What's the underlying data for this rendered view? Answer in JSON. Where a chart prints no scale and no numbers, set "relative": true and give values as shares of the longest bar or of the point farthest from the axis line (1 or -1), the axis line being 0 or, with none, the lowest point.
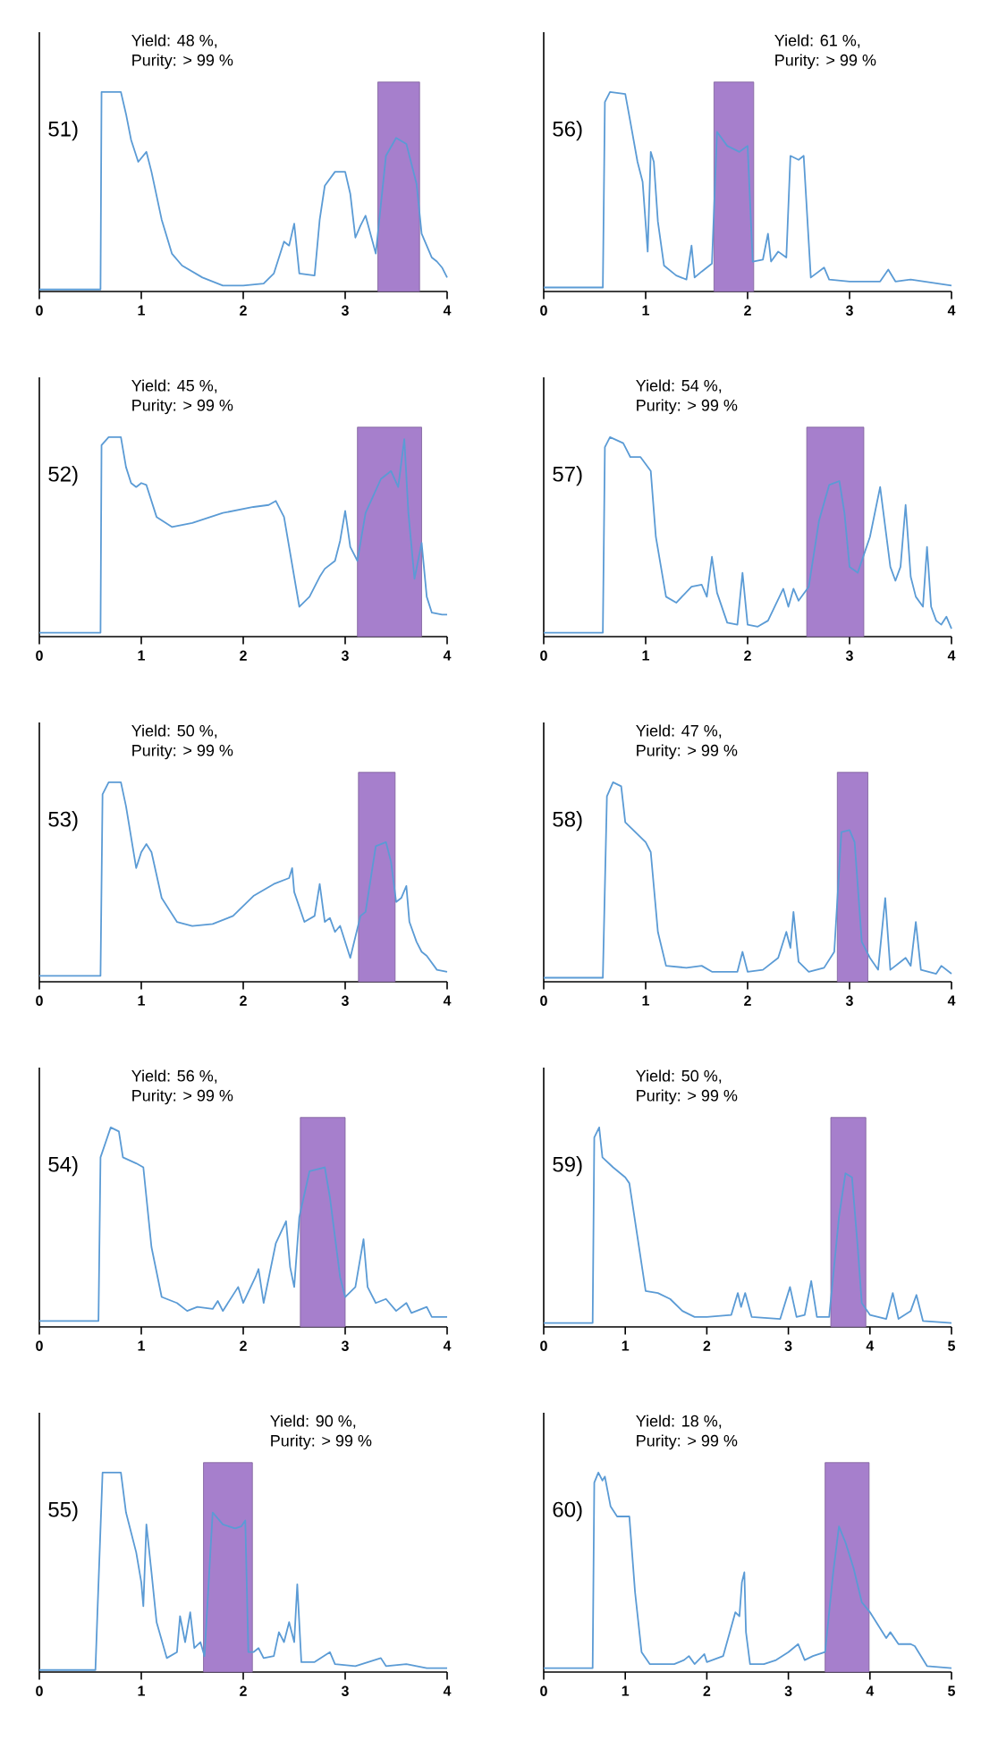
{
  "chart_data": [
    {
      "type": "line",
      "title": "51)",
      "annotations": [
        "Yield: 48 %,",
        "Purity: > 99 %"
      ],
      "relative": true,
      "tick_labels": "x",
      "xlim": [
        0,
        4
      ],
      "xticks": [
        0,
        1,
        2,
        3,
        4
      ],
      "bands": [
        {
          "axis": "x",
          "from": 3.32,
          "to": 3.73,
          "color": "#a67fcc"
        }
      ],
      "series": [
        {
          "color": "#5b9bd5",
          "x": [
            0,
            0.6,
            0.61,
            0.8,
            0.85,
            0.9,
            0.97,
            1.05,
            1.1,
            1.2,
            1.3,
            1.4,
            1.6,
            1.8,
            2.0,
            2.2,
            2.3,
            2.4,
            2.45,
            2.5,
            2.55,
            2.7,
            2.75,
            2.8,
            2.9,
            3.0,
            3.05,
            3.1,
            3.15,
            3.2,
            3.3,
            3.4,
            3.5,
            3.6,
            3.7,
            3.75,
            3.85,
            3.9,
            3.95,
            4.0
          ],
          "values": [
            0.01,
            0.01,
            1.0,
            1.0,
            0.89,
            0.76,
            0.65,
            0.7,
            0.6,
            0.36,
            0.19,
            0.13,
            0.07,
            0.03,
            0.03,
            0.04,
            0.09,
            0.25,
            0.23,
            0.34,
            0.09,
            0.08,
            0.36,
            0.53,
            0.6,
            0.6,
            0.49,
            0.27,
            0.33,
            0.38,
            0.19,
            0.68,
            0.77,
            0.74,
            0.54,
            0.29,
            0.17,
            0.15,
            0.12,
            0.07
          ]
        }
      ]
    },
    {
      "type": "line",
      "title": "56)",
      "annotations": [
        "Yield: 61 %,",
        "Purity: > 99 %"
      ],
      "relative": true,
      "tick_labels": "x",
      "xlim": [
        0,
        4
      ],
      "xticks": [
        0,
        1,
        2,
        3,
        4
      ],
      "bands": [
        {
          "axis": "x",
          "from": 1.67,
          "to": 2.06,
          "color": "#a67fcc"
        }
      ],
      "series": [
        {
          "color": "#5b9bd5",
          "x": [
            0,
            0.58,
            0.6,
            0.65,
            0.8,
            0.85,
            0.92,
            0.97,
            1.02,
            1.05,
            1.08,
            1.12,
            1.18,
            1.3,
            1.4,
            1.45,
            1.48,
            1.55,
            1.65,
            1.7,
            1.8,
            1.92,
            2.0,
            2.05,
            2.15,
            2.2,
            2.23,
            2.3,
            2.38,
            2.42,
            2.5,
            2.55,
            2.62,
            2.75,
            2.8,
            3.0,
            3.3,
            3.38,
            3.45,
            3.6,
            4.0
          ],
          "values": [
            0.02,
            0.02,
            0.95,
            1.0,
            0.99,
            0.85,
            0.65,
            0.55,
            0.2,
            0.7,
            0.65,
            0.35,
            0.13,
            0.08,
            0.06,
            0.23,
            0.07,
            0.1,
            0.14,
            0.8,
            0.73,
            0.7,
            0.73,
            0.15,
            0.16,
            0.29,
            0.15,
            0.2,
            0.17,
            0.68,
            0.66,
            0.68,
            0.07,
            0.12,
            0.06,
            0.05,
            0.05,
            0.11,
            0.05,
            0.06,
            0.03
          ]
        }
      ]
    },
    {
      "type": "line",
      "title": "52)",
      "annotations": [
        "Yield: 45 %,",
        "Purity: > 99 %"
      ],
      "relative": true,
      "tick_labels": "x",
      "xlim": [
        0,
        4
      ],
      "xticks": [
        0,
        1,
        2,
        3,
        4
      ],
      "bands": [
        {
          "axis": "x",
          "from": 3.12,
          "to": 3.75,
          "color": "#a67fcc"
        }
      ],
      "series": [
        {
          "color": "#5b9bd5",
          "x": [
            0,
            0.6,
            0.61,
            0.68,
            0.8,
            0.85,
            0.9,
            0.95,
            1.0,
            1.05,
            1.15,
            1.3,
            1.5,
            1.8,
            2.1,
            2.25,
            2.32,
            2.4,
            2.45,
            2.55,
            2.65,
            2.75,
            2.8,
            2.9,
            2.95,
            3.0,
            3.05,
            3.12,
            3.2,
            3.35,
            3.45,
            3.52,
            3.58,
            3.62,
            3.68,
            3.75,
            3.8,
            3.85,
            3.95,
            4.0
          ],
          "values": [
            0.02,
            0.02,
            0.96,
            1.0,
            1.0,
            0.85,
            0.77,
            0.75,
            0.77,
            0.76,
            0.6,
            0.55,
            0.57,
            0.62,
            0.65,
            0.66,
            0.68,
            0.6,
            0.45,
            0.15,
            0.2,
            0.3,
            0.34,
            0.38,
            0.48,
            0.63,
            0.45,
            0.38,
            0.62,
            0.79,
            0.83,
            0.75,
            0.99,
            0.62,
            0.29,
            0.47,
            0.2,
            0.12,
            0.11,
            0.11
          ]
        }
      ]
    },
    {
      "type": "line",
      "title": "57)",
      "annotations": [
        "Yield: 54 %,",
        "Purity: > 99 %"
      ],
      "relative": true,
      "tick_labels": "x",
      "xlim": [
        0,
        4
      ],
      "xticks": [
        0,
        1,
        2,
        3,
        4
      ],
      "bands": [
        {
          "axis": "x",
          "from": 2.58,
          "to": 3.14,
          "color": "#a67fcc"
        }
      ],
      "series": [
        {
          "color": "#5b9bd5",
          "x": [
            0,
            0.58,
            0.6,
            0.65,
            0.78,
            0.85,
            0.95,
            1.05,
            1.1,
            1.2,
            1.3,
            1.45,
            1.55,
            1.6,
            1.65,
            1.7,
            1.8,
            1.9,
            1.95,
            2.0,
            2.1,
            2.2,
            2.35,
            2.4,
            2.45,
            2.5,
            2.6,
            2.7,
            2.8,
            2.9,
            2.95,
            3.0,
            3.08,
            3.2,
            3.3,
            3.4,
            3.45,
            3.5,
            3.55,
            3.6,
            3.65,
            3.72,
            3.76,
            3.8,
            3.85,
            3.9,
            3.95,
            4.0
          ],
          "values": [
            0.02,
            0.02,
            0.95,
            1.0,
            0.97,
            0.9,
            0.9,
            0.83,
            0.5,
            0.2,
            0.17,
            0.25,
            0.26,
            0.2,
            0.4,
            0.22,
            0.07,
            0.06,
            0.32,
            0.06,
            0.05,
            0.08,
            0.24,
            0.15,
            0.24,
            0.18,
            0.25,
            0.58,
            0.76,
            0.78,
            0.62,
            0.35,
            0.32,
            0.5,
            0.75,
            0.35,
            0.28,
            0.35,
            0.66,
            0.3,
            0.2,
            0.15,
            0.45,
            0.15,
            0.08,
            0.06,
            0.1,
            0.04
          ]
        }
      ]
    },
    {
      "type": "line",
      "title": "53)",
      "annotations": [
        "Yield: 50 %,",
        "Purity: > 99 %"
      ],
      "relative": true,
      "tick_labels": "x",
      "xlim": [
        0,
        4
      ],
      "xticks": [
        0,
        1,
        2,
        3,
        4
      ],
      "bands": [
        {
          "axis": "x",
          "from": 3.13,
          "to": 3.49,
          "color": "#a67fcc"
        }
      ],
      "series": [
        {
          "color": "#5b9bd5",
          "x": [
            0,
            0.6,
            0.62,
            0.68,
            0.8,
            0.85,
            0.95,
            1.0,
            1.05,
            1.1,
            1.2,
            1.35,
            1.5,
            1.7,
            1.9,
            2.1,
            2.3,
            2.45,
            2.48,
            2.5,
            2.6,
            2.7,
            2.75,
            2.8,
            2.85,
            2.9,
            2.95,
            3.05,
            3.15,
            3.2,
            3.3,
            3.4,
            3.45,
            3.5,
            3.55,
            3.6,
            3.63,
            3.7,
            3.75,
            3.8,
            3.9,
            4.0
          ],
          "values": [
            0.03,
            0.03,
            0.94,
            1.0,
            1.0,
            0.88,
            0.57,
            0.65,
            0.69,
            0.65,
            0.42,
            0.3,
            0.28,
            0.29,
            0.33,
            0.43,
            0.49,
            0.52,
            0.57,
            0.45,
            0.3,
            0.33,
            0.49,
            0.3,
            0.32,
            0.25,
            0.28,
            0.12,
            0.33,
            0.35,
            0.68,
            0.7,
            0.6,
            0.4,
            0.42,
            0.48,
            0.3,
            0.2,
            0.15,
            0.13,
            0.06,
            0.05
          ]
        }
      ]
    },
    {
      "type": "line",
      "title": "58)",
      "annotations": [
        "Yield: 47 %,",
        "Purity: > 99 %"
      ],
      "relative": true,
      "tick_labels": "x",
      "xlim": [
        0,
        4
      ],
      "xticks": [
        0,
        1,
        2,
        3,
        4
      ],
      "bands": [
        {
          "axis": "x",
          "from": 2.88,
          "to": 3.18,
          "color": "#a67fcc"
        }
      ],
      "series": [
        {
          "color": "#5b9bd5",
          "x": [
            0,
            0.58,
            0.62,
            0.68,
            0.76,
            0.8,
            0.9,
            1.0,
            1.05,
            1.12,
            1.2,
            1.4,
            1.55,
            1.65,
            1.9,
            1.95,
            2.0,
            2.15,
            2.3,
            2.38,
            2.42,
            2.45,
            2.5,
            2.6,
            2.75,
            2.85,
            2.92,
            3.0,
            3.05,
            3.12,
            3.2,
            3.28,
            3.35,
            3.4,
            3.5,
            3.55,
            3.6,
            3.65,
            3.7,
            3.85,
            3.9,
            4.0
          ],
          "values": [
            0.02,
            0.02,
            0.93,
            1.0,
            0.98,
            0.8,
            0.75,
            0.7,
            0.65,
            0.25,
            0.08,
            0.07,
            0.08,
            0.05,
            0.05,
            0.15,
            0.05,
            0.06,
            0.12,
            0.25,
            0.17,
            0.35,
            0.1,
            0.05,
            0.07,
            0.15,
            0.75,
            0.76,
            0.7,
            0.2,
            0.12,
            0.06,
            0.42,
            0.06,
            0.1,
            0.12,
            0.08,
            0.3,
            0.06,
            0.04,
            0.08,
            0.04
          ]
        }
      ]
    },
    {
      "type": "line",
      "title": "54)",
      "annotations": [
        "Yield: 56 %,",
        "Purity: > 99 %"
      ],
      "relative": true,
      "tick_labels": "x",
      "xlim": [
        0,
        4
      ],
      "xticks": [
        0,
        1,
        2,
        3,
        4
      ],
      "bands": [
        {
          "axis": "x",
          "from": 2.56,
          "to": 3.0,
          "color": "#a67fcc"
        }
      ],
      "series": [
        {
          "color": "#5b9bd5",
          "x": [
            0,
            0.58,
            0.6,
            0.7,
            0.78,
            0.82,
            0.95,
            1.02,
            1.1,
            1.2,
            1.35,
            1.45,
            1.55,
            1.7,
            1.75,
            1.8,
            1.95,
            2.0,
            2.12,
            2.15,
            2.2,
            2.32,
            2.42,
            2.46,
            2.5,
            2.55,
            2.65,
            2.8,
            2.85,
            2.95,
            3.0,
            3.1,
            3.18,
            3.22,
            3.3,
            3.4,
            3.5,
            3.6,
            3.65,
            3.8,
            3.85,
            4.0
          ],
          "values": [
            0.03,
            0.03,
            0.85,
            1.0,
            0.98,
            0.85,
            0.82,
            0.8,
            0.4,
            0.15,
            0.12,
            0.08,
            0.1,
            0.09,
            0.13,
            0.08,
            0.2,
            0.12,
            0.25,
            0.29,
            0.12,
            0.42,
            0.53,
            0.3,
            0.2,
            0.55,
            0.78,
            0.8,
            0.65,
            0.25,
            0.15,
            0.2,
            0.44,
            0.2,
            0.12,
            0.14,
            0.08,
            0.12,
            0.07,
            0.1,
            0.05,
            0.05
          ]
        }
      ]
    },
    {
      "type": "line",
      "title": "59)",
      "annotations": [
        "Yield: 50 %,",
        "Purity: > 99 %"
      ],
      "relative": true,
      "tick_labels": "x",
      "xlim": [
        0,
        5
      ],
      "xticks": [
        0,
        1,
        2,
        3,
        4,
        5
      ],
      "bands": [
        {
          "axis": "x",
          "from": 3.52,
          "to": 3.95,
          "color": "#a67fcc"
        }
      ],
      "series": [
        {
          "color": "#5b9bd5",
          "x": [
            0,
            0.6,
            0.62,
            0.68,
            0.72,
            0.85,
            1.0,
            1.05,
            1.15,
            1.25,
            1.4,
            1.55,
            1.7,
            1.85,
            2.0,
            2.3,
            2.38,
            2.42,
            2.47,
            2.55,
            2.9,
            3.02,
            3.1,
            3.2,
            3.28,
            3.35,
            3.5,
            3.62,
            3.7,
            3.78,
            3.85,
            3.9,
            4.0,
            4.2,
            4.28,
            4.35,
            4.5,
            4.57,
            4.65,
            5.0
          ],
          "values": [
            0.02,
            0.02,
            0.95,
            1.0,
            0.85,
            0.8,
            0.75,
            0.72,
            0.45,
            0.18,
            0.17,
            0.14,
            0.08,
            0.05,
            0.05,
            0.06,
            0.17,
            0.1,
            0.17,
            0.05,
            0.04,
            0.2,
            0.05,
            0.06,
            0.23,
            0.05,
            0.05,
            0.55,
            0.77,
            0.75,
            0.4,
            0.12,
            0.06,
            0.04,
            0.17,
            0.04,
            0.08,
            0.16,
            0.03,
            0.02
          ]
        }
      ]
    },
    {
      "type": "line",
      "title": "55)",
      "annotations": [
        "Yield: 90 %,",
        "Purity: > 99 %"
      ],
      "relative": true,
      "tick_labels": "x",
      "xlim": [
        0,
        4
      ],
      "xticks": [
        0,
        1,
        2,
        3,
        4
      ],
      "bands": [
        {
          "axis": "x",
          "from": 1.61,
          "to": 2.09,
          "color": "#a67fcc"
        }
      ],
      "series": [
        {
          "color": "#5b9bd5",
          "x": [
            0,
            0.55,
            0.57,
            0.62,
            0.8,
            0.85,
            0.95,
            1.0,
            1.02,
            1.05,
            1.1,
            1.15,
            1.25,
            1.35,
            1.38,
            1.43,
            1.48,
            1.52,
            1.58,
            1.62,
            1.7,
            1.8,
            1.92,
            1.98,
            2.02,
            2.05,
            2.1,
            2.15,
            2.2,
            2.3,
            2.35,
            2.4,
            2.45,
            2.5,
            2.53,
            2.57,
            2.7,
            2.85,
            2.9,
            3.1,
            3.35,
            3.4,
            3.6,
            3.8,
            4.0
          ],
          "values": [
            0.01,
            0.01,
            0.3,
            1.0,
            1.0,
            0.8,
            0.6,
            0.45,
            0.33,
            0.74,
            0.5,
            0.25,
            0.07,
            0.1,
            0.28,
            0.15,
            0.3,
            0.12,
            0.15,
            0.08,
            0.8,
            0.74,
            0.72,
            0.73,
            0.76,
            0.1,
            0.1,
            0.12,
            0.07,
            0.08,
            0.2,
            0.15,
            0.25,
            0.15,
            0.44,
            0.05,
            0.05,
            0.1,
            0.04,
            0.03,
            0.07,
            0.03,
            0.04,
            0.02,
            0.02
          ]
        }
      ]
    },
    {
      "type": "line",
      "title": "60)",
      "annotations": [
        "Yield: 18 %,",
        "Purity: > 99 %"
      ],
      "relative": true,
      "tick_labels": "x",
      "xlim": [
        0,
        5
      ],
      "xticks": [
        0,
        1,
        2,
        3,
        4,
        5
      ],
      "bands": [
        {
          "axis": "x",
          "from": 3.45,
          "to": 3.99,
          "color": "#a67fcc"
        }
      ],
      "series": [
        {
          "color": "#5b9bd5",
          "x": [
            0,
            0.6,
            0.62,
            0.67,
            0.72,
            0.75,
            0.82,
            0.9,
            1.05,
            1.12,
            1.2,
            1.3,
            1.6,
            1.72,
            1.78,
            1.85,
            1.97,
            2.0,
            2.2,
            2.35,
            2.4,
            2.43,
            2.46,
            2.48,
            2.53,
            2.7,
            2.85,
            3.0,
            3.12,
            3.2,
            3.3,
            3.45,
            3.55,
            3.62,
            3.7,
            3.8,
            3.9,
            4.0,
            4.2,
            4.25,
            4.35,
            4.5,
            4.55,
            4.7,
            5.0
          ],
          "values": [
            0.02,
            0.02,
            0.95,
            1.0,
            0.96,
            0.98,
            0.83,
            0.78,
            0.78,
            0.4,
            0.1,
            0.04,
            0.04,
            0.06,
            0.08,
            0.04,
            0.09,
            0.05,
            0.08,
            0.3,
            0.28,
            0.45,
            0.5,
            0.2,
            0.04,
            0.04,
            0.06,
            0.1,
            0.14,
            0.06,
            0.08,
            0.1,
            0.5,
            0.73,
            0.65,
            0.52,
            0.35,
            0.3,
            0.17,
            0.2,
            0.14,
            0.14,
            0.13,
            0.03,
            0.02
          ]
        }
      ]
    }
  ]
}
